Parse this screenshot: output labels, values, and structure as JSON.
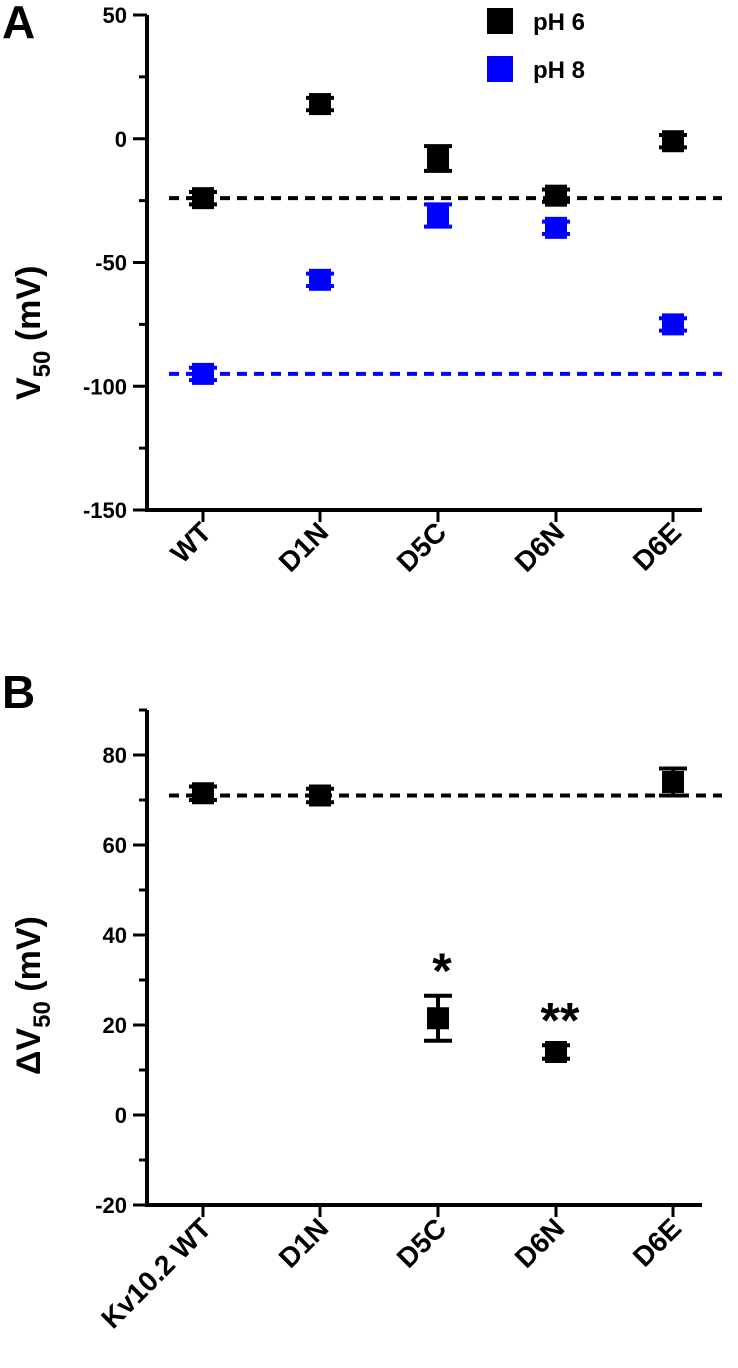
{
  "chart_data": [
    {
      "panel": "A",
      "type": "scatter",
      "categories": [
        "WT",
        "D1N",
        "D5C",
        "D6N",
        "D6E"
      ],
      "ylabel": "V",
      "ylabel_sub": "50",
      "ylabel_unit": " (mV)",
      "ylim": [
        -150,
        50
      ],
      "yticks": [
        50,
        0,
        -50,
        -100,
        -150
      ],
      "legend_position": "top-right",
      "series": [
        {
          "name": "pH 6",
          "color": "#000000",
          "values": [
            -24,
            14,
            -8,
            -23,
            -1
          ],
          "errors": [
            2.5,
            2.5,
            5,
            2.5,
            2.5
          ]
        },
        {
          "name": "pH 8",
          "color": "#0000ff",
          "values": [
            -95,
            -57,
            -31,
            -36,
            -75
          ],
          "errors": [
            2.5,
            2.5,
            4.5,
            2.5,
            2.5
          ]
        }
      ],
      "reference_lines": [
        {
          "value": -24,
          "color": "#000000"
        },
        {
          "value": -95,
          "color": "#0000ff"
        }
      ]
    },
    {
      "panel": "B",
      "type": "scatter",
      "categories": [
        "Kv10.2 WT",
        "D1N",
        "D5C",
        "D6N",
        "D6E"
      ],
      "ylabel": "ΔV",
      "ylabel_sub": "50",
      "ylabel_unit": " (mV)",
      "ylim": [
        -20,
        90
      ],
      "yticks": [
        80,
        60,
        40,
        20,
        0,
        -20
      ],
      "series": [
        {
          "color": "#000000",
          "values": [
            71.5,
            71,
            21.5,
            14,
            74
          ],
          "errors": [
            1.5,
            1.5,
            5,
            1.5,
            3
          ]
        }
      ],
      "annotations": [
        "",
        "",
        "*",
        "**",
        ""
      ],
      "reference_lines": [
        {
          "value": 71,
          "color": "#000000"
        }
      ]
    }
  ]
}
